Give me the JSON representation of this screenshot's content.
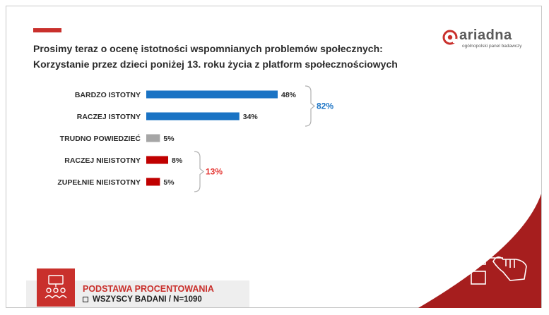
{
  "title_line1": "Prosimy teraz o ocenę istotności wspomnianych problemów społecznych:",
  "title_line2": "Korzystanie przez dzieci poniżej 13. roku życia z platform społecznościowych",
  "logo": {
    "word": "ariadna",
    "tagline": "ogólnopolski panel badawczy",
    "icon": "ariadna-logo-icon"
  },
  "colors": {
    "accent": "#c9302c",
    "blue": "#1a73c4",
    "gray": "#a6a6a6",
    "red": "#c00000",
    "group_red": "#e53935"
  },
  "chart_data": {
    "type": "bar",
    "orientation": "horizontal",
    "categories": [
      "BARDZO ISTOTNY",
      "RACZEJ ISTOTNY",
      "TRUDNO POWIEDZIEĆ",
      "RACZEJ NIEISTOTNY",
      "ZUPEŁNIE NIEISTOTNY"
    ],
    "values": [
      48,
      34,
      5,
      8,
      5
    ],
    "value_labels": [
      "48%",
      "34%",
      "5%",
      "8%",
      "5%"
    ],
    "bar_colors": [
      "#1a73c4",
      "#1a73c4",
      "#a6a6a6",
      "#c00000",
      "#c00000"
    ],
    "groups": [
      {
        "label": "82%",
        "members": [
          0,
          1
        ],
        "color": "#1a73c4"
      },
      {
        "label": "13%",
        "members": [
          3,
          4
        ],
        "color": "#e53935"
      }
    ],
    "xlim": [
      0,
      48
    ],
    "grid": false
  },
  "footer": {
    "title": "PODSTAWA PROCENTOWANIA",
    "subtitle": "WSZYSCY BADANI / N=1090",
    "icon": "group-presentation-icon",
    "checkbox_icon": "checkbox-icon"
  },
  "decoration": {
    "corner_icon": "checklist-hand-icon"
  }
}
